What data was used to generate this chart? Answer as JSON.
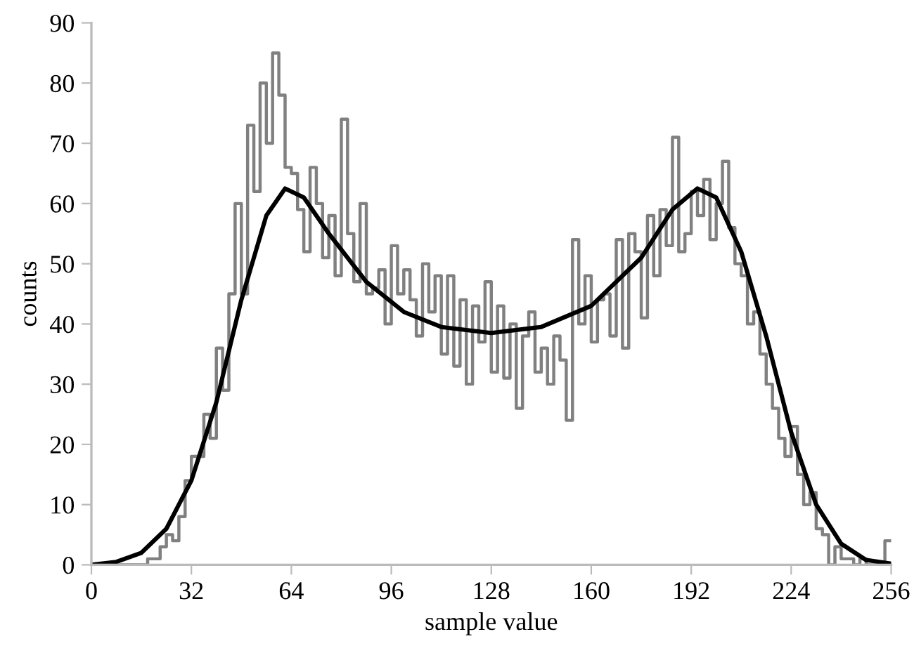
{
  "chart_data": {
    "type": "line",
    "xlabel": "sample value",
    "ylabel": "counts",
    "xlim": [
      0,
      256
    ],
    "xticks": [
      0,
      32,
      64,
      96,
      128,
      160,
      192,
      224,
      256
    ],
    "ylim": [
      0,
      90
    ],
    "yticks": [
      0,
      10,
      20,
      30,
      40,
      50,
      60,
      70,
      80,
      90
    ],
    "grid": false,
    "marker": "none",
    "line_style": "solid",
    "series": [
      {
        "type": "step",
        "color": "#808080",
        "x": [
          0,
          2,
          4,
          6,
          8,
          10,
          12,
          14,
          16,
          18,
          20,
          22,
          24,
          26,
          28,
          30,
          32,
          34,
          36,
          38,
          40,
          42,
          44,
          46,
          48,
          50,
          52,
          54,
          56,
          58,
          60,
          62,
          64,
          66,
          68,
          70,
          72,
          74,
          76,
          78,
          80,
          82,
          84,
          86,
          88,
          90,
          92,
          94,
          96,
          98,
          100,
          102,
          104,
          106,
          108,
          110,
          112,
          114,
          116,
          118,
          120,
          122,
          124,
          126,
          128,
          130,
          132,
          134,
          136,
          138,
          140,
          142,
          144,
          146,
          148,
          150,
          152,
          154,
          156,
          158,
          160,
          162,
          164,
          166,
          168,
          170,
          172,
          174,
          176,
          178,
          180,
          182,
          184,
          186,
          188,
          190,
          192,
          194,
          196,
          198,
          200,
          202,
          204,
          206,
          208,
          210,
          212,
          214,
          216,
          218,
          220,
          222,
          224,
          226,
          228,
          230,
          232,
          234,
          236,
          238,
          240,
          242,
          244,
          246,
          248,
          250,
          252,
          254,
          256
        ],
        "values": [
          0,
          0,
          0,
          0,
          0,
          0,
          0,
          0,
          0,
          1,
          1,
          3,
          5,
          4,
          8,
          14,
          18,
          18,
          25,
          21,
          36,
          29,
          45,
          60,
          45,
          73,
          62,
          80,
          70,
          85,
          78,
          66,
          65,
          59,
          52,
          66,
          60,
          51,
          58,
          48,
          74,
          55,
          47,
          60,
          45,
          46,
          49,
          40,
          53,
          45,
          49,
          44,
          38,
          50,
          42,
          48,
          35,
          48,
          33,
          44,
          30,
          43,
          37,
          47,
          32,
          43,
          31,
          40,
          26,
          38,
          42,
          32,
          36,
          30,
          38,
          34,
          24,
          54,
          40,
          48,
          37,
          44,
          45,
          38,
          54,
          36,
          55,
          52,
          41,
          58,
          48,
          59,
          53,
          71,
          52,
          55,
          62,
          58,
          64,
          54,
          60,
          67,
          56,
          50,
          48,
          40,
          42,
          35,
          30,
          26,
          21,
          18,
          23,
          15,
          10,
          12,
          6,
          5,
          0,
          3,
          1,
          1,
          0,
          1,
          0,
          0,
          0,
          4,
          4
        ]
      },
      {
        "color": "#000000",
        "x": [
          0,
          8,
          16,
          24,
          32,
          40,
          48,
          56,
          62,
          68,
          76,
          88,
          100,
          112,
          128,
          144,
          160,
          176,
          186,
          194,
          200,
          208,
          216,
          224,
          232,
          240,
          248,
          256
        ],
        "values": [
          0,
          0.5,
          2,
          6,
          14,
          27,
          44,
          58,
          62.5,
          61,
          55,
          47,
          42,
          39.5,
          38.5,
          39.5,
          43,
          51,
          59,
          62.5,
          61,
          52,
          38,
          22,
          10,
          3.5,
          0.8,
          0.2
        ]
      }
    ]
  }
}
